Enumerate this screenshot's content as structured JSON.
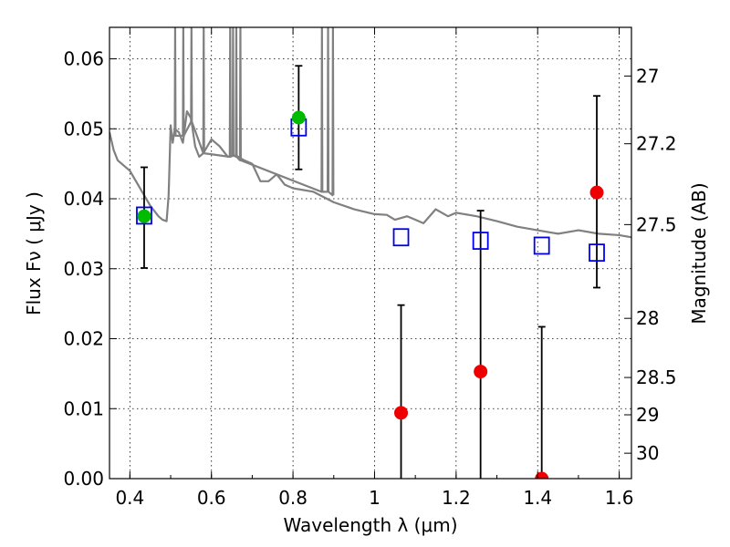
{
  "chart_data": {
    "type": "scatter",
    "xlabel": "Wavelength  λ (μm)",
    "ylabel": "Flux  Fν  ( μJy )",
    "y2label": "Magnitude (AB)",
    "xlim": [
      0.35,
      1.63
    ],
    "ylim": [
      0.0,
      0.0645
    ],
    "grid": true,
    "x_ticks": [
      0.4,
      0.6,
      0.8,
      1.0,
      1.2,
      1.4,
      1.6
    ],
    "x_tick_labels": [
      "0.4",
      "0.6",
      "0.8",
      "1",
      "1.2",
      "1.4",
      "1.6"
    ],
    "y_ticks": [
      0.0,
      0.01,
      0.02,
      0.03,
      0.04,
      0.05,
      0.06
    ],
    "y_tick_labels": [
      "0.00",
      "0.01",
      "0.02",
      "0.03",
      "0.04",
      "0.05",
      "0.06"
    ],
    "y2_ticks": [
      27,
      27.2,
      27.5,
      28,
      28.5,
      29,
      30
    ],
    "y2_tick_labels": [
      "27",
      "27.2",
      "27.5",
      "28",
      "28.5",
      "29",
      "30"
    ],
    "colors": {
      "template": "#808080",
      "model": "#0000ee",
      "detection": "#00bb00",
      "nondetection": "#ee0000",
      "errorbar": "#000000"
    },
    "series": [
      {
        "marker": "line",
        "x": [
          0.35,
          0.36,
          0.37,
          0.38,
          0.4,
          0.42,
          0.45,
          0.47,
          0.48,
          0.49,
          0.495,
          0.5,
          0.505,
          0.51,
          0.52,
          0.53,
          0.54,
          0.55,
          0.56,
          0.57,
          0.58,
          0.6,
          0.62,
          0.64,
          0.66,
          0.68,
          0.7,
          0.72,
          0.74,
          0.76,
          0.78,
          0.8,
          0.85,
          0.9,
          0.95,
          1.0,
          1.03,
          1.05,
          1.08,
          1.1,
          1.12,
          1.15,
          1.18,
          1.2,
          1.25,
          1.3,
          1.35,
          1.4,
          1.45,
          1.5,
          1.55,
          1.6,
          1.63
        ],
        "y": [
          0.0495,
          0.047,
          0.0455,
          0.045,
          0.044,
          0.042,
          0.039,
          0.0375,
          0.037,
          0.0368,
          0.0405,
          0.0505,
          0.048,
          0.05,
          0.0495,
          0.048,
          0.0525,
          0.0515,
          0.0475,
          0.046,
          0.0465,
          0.0485,
          0.0475,
          0.046,
          0.0462,
          0.0455,
          0.045,
          0.0425,
          0.0425,
          0.0435,
          0.042,
          0.0415,
          0.041,
          0.0395,
          0.0385,
          0.0378,
          0.0377,
          0.037,
          0.0375,
          0.037,
          0.0365,
          0.0385,
          0.0375,
          0.038,
          0.0375,
          0.0368,
          0.036,
          0.0355,
          0.035,
          0.0355,
          0.035,
          0.0348,
          0.0345
        ]
      },
      {
        "marker": "line",
        "x": [
          0.51,
          0.511,
          0.512,
          0.53,
          0.531,
          0.532,
          0.55,
          0.551,
          0.552,
          0.58,
          0.581,
          0.582,
          0.645,
          0.646,
          0.647,
          0.652,
          0.653,
          0.654,
          0.66,
          0.661,
          0.662,
          0.67,
          0.671,
          0.672,
          0.87,
          0.871,
          0.872,
          0.885,
          0.886,
          0.887,
          0.897,
          0.898,
          0.899
        ],
        "y": [
          0.049,
          0.0645,
          0.049,
          0.049,
          0.0645,
          0.049,
          0.051,
          0.0645,
          0.051,
          0.0465,
          0.0645,
          0.0465,
          0.046,
          0.0645,
          0.046,
          0.0462,
          0.0645,
          0.0462,
          0.046,
          0.0645,
          0.046,
          0.0455,
          0.0645,
          0.0455,
          0.041,
          0.0645,
          0.041,
          0.041,
          0.0645,
          0.041,
          0.0405,
          0.0645,
          0.0405
        ]
      },
      {
        "marker": "open-square",
        "x": [
          0.435,
          0.814,
          1.065,
          1.26,
          1.41,
          1.545
        ],
        "y": [
          0.0376,
          0.0502,
          0.0345,
          0.034,
          0.0333,
          0.0323
        ]
      },
      {
        "marker": "filled-circle",
        "x": [
          0.435,
          0.814
        ],
        "y": [
          0.0375,
          0.0516
        ],
        "yerr_low": [
          0.0074,
          0.0074
        ],
        "yerr_high": [
          0.007,
          0.0074
        ]
      },
      {
        "marker": "filled-circle",
        "x": [
          1.065,
          1.26,
          1.41,
          1.545
        ],
        "y": [
          0.0094,
          0.0153,
          0.0,
          0.0409
        ],
        "yerr_low": [
          0.0094,
          0.0153,
          0.0,
          0.0136
        ],
        "yerr_high": [
          0.0154,
          0.023,
          0.0217,
          0.0138
        ]
      }
    ]
  }
}
